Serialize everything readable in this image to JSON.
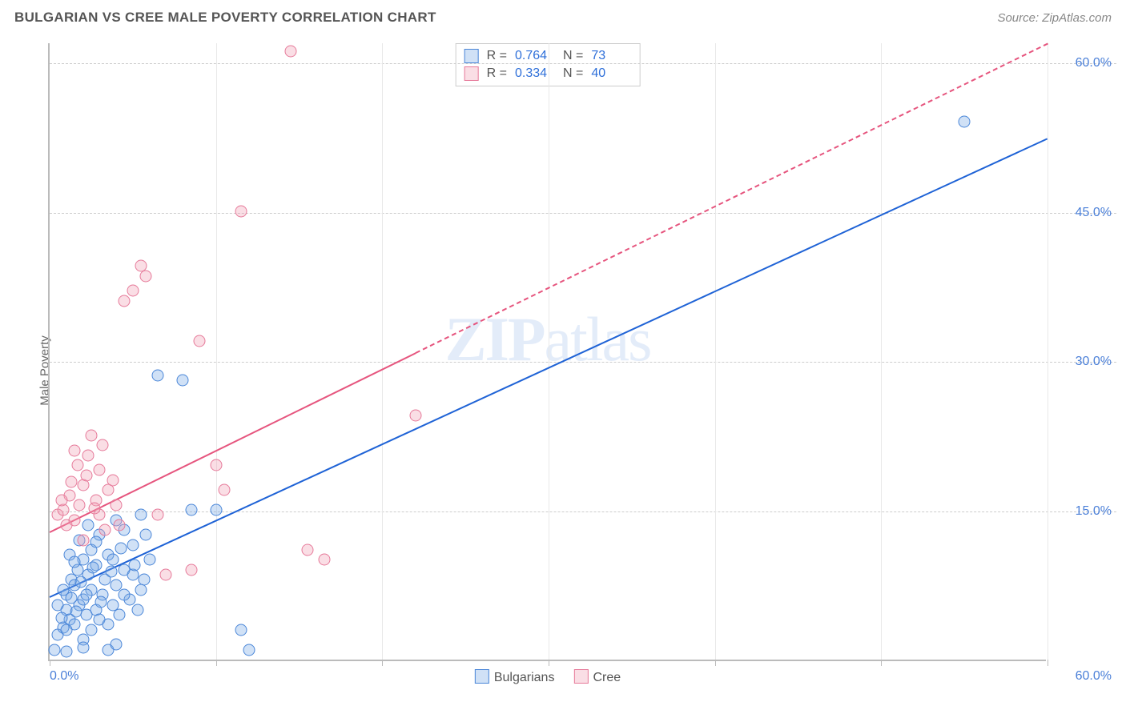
{
  "title": "BULGARIAN VS CREE MALE POVERTY CORRELATION CHART",
  "source_label": "Source: ZipAtlas.com",
  "watermark": {
    "part1": "ZIP",
    "part2": "atlas"
  },
  "ylabel": "Male Poverty",
  "chart": {
    "type": "scatter",
    "xlim": [
      0,
      60
    ],
    "ylim": [
      0,
      62
    ],
    "background_color": "#ffffff",
    "grid_color_h": "#cccccc",
    "grid_color_v": "#e8e8e8",
    "axis_color": "#bbbbbb",
    "ytick_positions": [
      15,
      30,
      45,
      60
    ],
    "ytick_labels": [
      "15.0%",
      "30.0%",
      "45.0%",
      "60.0%"
    ],
    "xtick_positions": [
      0,
      10,
      20,
      30,
      40,
      50,
      60
    ],
    "xtick_label_left": "0.0%",
    "xtick_label_right": "60.0%",
    "marker_radius": 7.5,
    "marker_stroke_width": 1.2,
    "line_width": 2.5,
    "dash_pattern": "6,5"
  },
  "series": [
    {
      "name": "Bulgarians",
      "fill": "rgba(120,170,230,0.35)",
      "stroke": "#4a86d8",
      "line_color": "#1f63d6",
      "R": "0.764",
      "N": "73",
      "trend": {
        "x1": 0,
        "y1": 6.5,
        "x2": 60,
        "y2": 52.5,
        "dashed_from_x": null
      },
      "points": [
        [
          0.3,
          1.0
        ],
        [
          0.5,
          2.5
        ],
        [
          0.8,
          3.2
        ],
        [
          1.0,
          5.0
        ],
        [
          1.0,
          6.5
        ],
        [
          1.2,
          4.0
        ],
        [
          1.3,
          8.0
        ],
        [
          1.5,
          3.5
        ],
        [
          1.5,
          7.5
        ],
        [
          1.7,
          9.0
        ],
        [
          1.8,
          5.5
        ],
        [
          2.0,
          2.0
        ],
        [
          2.0,
          6.0
        ],
        [
          2.0,
          10.0
        ],
        [
          2.2,
          4.5
        ],
        [
          2.3,
          8.5
        ],
        [
          2.5,
          3.0
        ],
        [
          2.5,
          7.0
        ],
        [
          2.5,
          11.0
        ],
        [
          2.8,
          5.0
        ],
        [
          2.8,
          9.5
        ],
        [
          3.0,
          4.0
        ],
        [
          3.0,
          12.5
        ],
        [
          3.2,
          6.5
        ],
        [
          3.3,
          8.0
        ],
        [
          3.5,
          3.5
        ],
        [
          3.5,
          10.5
        ],
        [
          3.8,
          5.5
        ],
        [
          4.0,
          7.5
        ],
        [
          4.0,
          14.0
        ],
        [
          4.2,
          4.5
        ],
        [
          4.5,
          9.0
        ],
        [
          4.5,
          13.0
        ],
        [
          4.8,
          6.0
        ],
        [
          5.0,
          8.5
        ],
        [
          5.0,
          11.5
        ],
        [
          5.3,
          5.0
        ],
        [
          5.5,
          7.0
        ],
        [
          5.5,
          14.5
        ],
        [
          6.0,
          10.0
        ],
        [
          3.5,
          1.0
        ],
        [
          4.0,
          1.5
        ],
        [
          1.0,
          0.8
        ],
        [
          2.0,
          1.2
        ],
        [
          6.5,
          28.5
        ],
        [
          8.0,
          28.0
        ],
        [
          8.5,
          15.0
        ],
        [
          10.0,
          15.0
        ],
        [
          11.5,
          3.0
        ],
        [
          12.0,
          1.0
        ],
        [
          55.0,
          54.0
        ],
        [
          1.2,
          10.5
        ],
        [
          1.8,
          12.0
        ],
        [
          2.3,
          13.5
        ],
        [
          0.8,
          7.0
        ],
        [
          0.5,
          5.5
        ],
        [
          1.5,
          9.8
        ],
        [
          2.8,
          11.8
        ],
        [
          3.8,
          10.0
        ],
        [
          4.5,
          6.5
        ],
        [
          5.8,
          12.5
        ],
        [
          0.7,
          4.2
        ],
        [
          1.3,
          6.2
        ],
        [
          1.9,
          7.8
        ],
        [
          2.6,
          9.2
        ],
        [
          3.1,
          5.8
        ],
        [
          3.7,
          8.8
        ],
        [
          4.3,
          11.2
        ],
        [
          5.1,
          9.5
        ],
        [
          5.7,
          8.0
        ],
        [
          1.0,
          3.0
        ],
        [
          1.6,
          4.8
        ],
        [
          2.2,
          6.5
        ]
      ]
    },
    {
      "name": "Cree",
      "fill": "rgba(240,160,180,0.35)",
      "stroke": "#e67a9a",
      "line_color": "#e6557e",
      "R": "0.334",
      "N": "40",
      "trend": {
        "x1": 0,
        "y1": 13.0,
        "x2": 60,
        "y2": 62.0,
        "dashed_from_x": 22
      },
      "points": [
        [
          0.5,
          14.5
        ],
        [
          0.8,
          15.0
        ],
        [
          1.0,
          13.5
        ],
        [
          1.2,
          16.5
        ],
        [
          1.5,
          14.0
        ],
        [
          1.5,
          21.0
        ],
        [
          1.8,
          15.5
        ],
        [
          2.0,
          17.5
        ],
        [
          2.0,
          12.0
        ],
        [
          2.2,
          18.5
        ],
        [
          2.5,
          22.5
        ],
        [
          2.8,
          16.0
        ],
        [
          3.0,
          14.5
        ],
        [
          3.0,
          19.0
        ],
        [
          3.3,
          13.0
        ],
        [
          3.5,
          17.0
        ],
        [
          4.0,
          15.5
        ],
        [
          4.5,
          36.0
        ],
        [
          5.0,
          37.0
        ],
        [
          5.5,
          39.5
        ],
        [
          5.8,
          38.5
        ],
        [
          6.5,
          14.5
        ],
        [
          7.0,
          8.5
        ],
        [
          8.5,
          9.0
        ],
        [
          9.0,
          32.0
        ],
        [
          10.0,
          19.5
        ],
        [
          10.5,
          17.0
        ],
        [
          11.5,
          45.0
        ],
        [
          14.5,
          61.0
        ],
        [
          15.5,
          11.0
        ],
        [
          16.5,
          10.0
        ],
        [
          22.0,
          24.5
        ],
        [
          2.3,
          20.5
        ],
        [
          1.7,
          19.5
        ],
        [
          3.8,
          18.0
        ],
        [
          0.7,
          16.0
        ],
        [
          1.3,
          17.8
        ],
        [
          2.7,
          15.2
        ],
        [
          3.2,
          21.5
        ],
        [
          4.2,
          13.5
        ]
      ]
    }
  ],
  "legend_top": {
    "R_label": "R =",
    "N_label": "N ="
  },
  "legend_bottom": {
    "items": [
      "Bulgarians",
      "Cree"
    ]
  }
}
